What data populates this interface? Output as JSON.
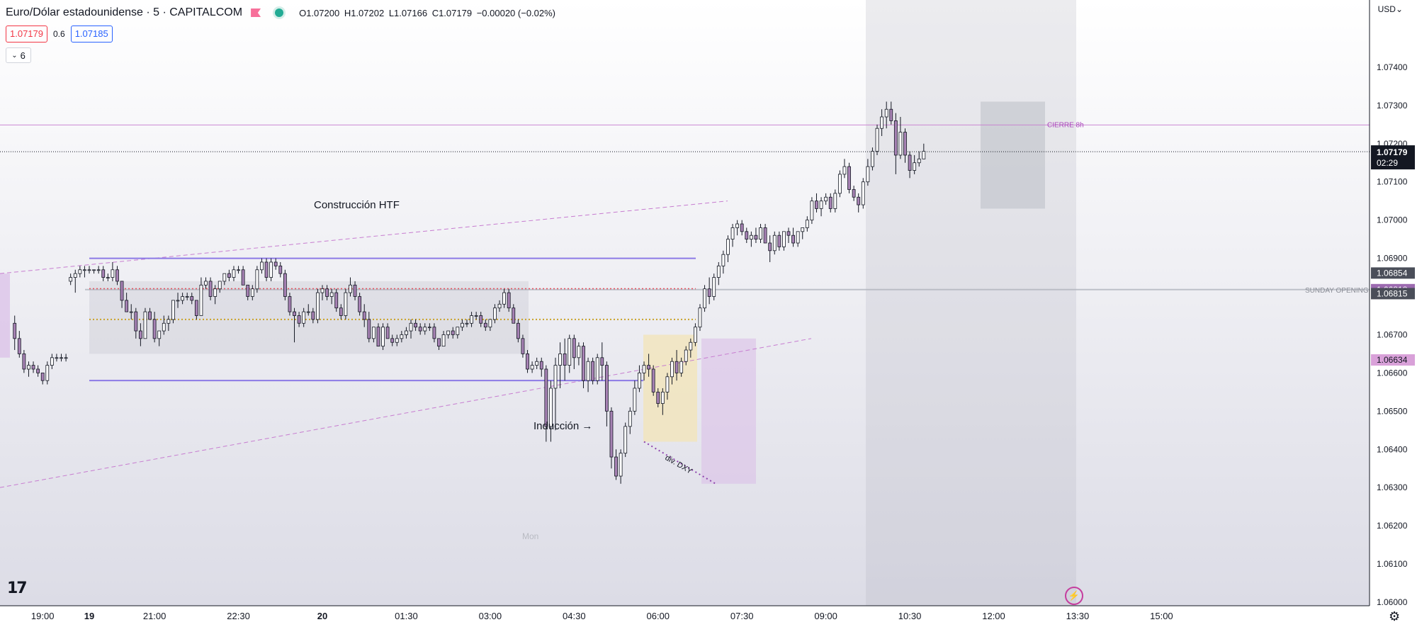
{
  "header": {
    "title": "Euro/Dólar estadounidense · 5 · CAPITALCOM",
    "open": "O1.07200",
    "high": "H1.07202",
    "low": "L1.07166",
    "close": "C1.07179",
    "change": "−0.00020 (−0.02%)"
  },
  "quotes": {
    "sell": "1.07179",
    "spread": "0.6",
    "buy": "1.07185"
  },
  "indicators_toggle": "6",
  "currency": "USD",
  "colors": {
    "candle_up": "#ffffff",
    "candle_down": "#a782b4",
    "wick": "#131722",
    "level_line": "#b39ddb",
    "zone_grey": "#b2b5be",
    "zone_yellow": "#f3e4b7",
    "zone_purple": "#dcc3e8",
    "price_marker": "#131722"
  },
  "chart_data": {
    "type": "candlestick",
    "symbol": "EURUSD",
    "timeframe": "5",
    "ylim": [
      1.06,
      1.0755
    ],
    "y_ticks": [
      "1.07400",
      "1.07300",
      "1.07200",
      "1.07100",
      "1.07000",
      "1.06900",
      "1.06700",
      "1.06600",
      "1.06500",
      "1.06400",
      "1.06300",
      "1.06200",
      "1.06100",
      "1.06000"
    ],
    "x_ticks": [
      {
        "label": "19",
        "t": -14
      },
      {
        "label": "19:00",
        "t": -10
      },
      {
        "label": "21:00",
        "t": 14
      },
      {
        "label": "22:30",
        "t": 32
      },
      {
        "label": "20",
        "t": 50
      },
      {
        "label": "01:30",
        "t": 68
      },
      {
        "label": "03:00",
        "t": 86
      },
      {
        "label": "04:30",
        "t": 104
      },
      {
        "label": "06:00",
        "t": 122
      },
      {
        "label": "07:30",
        "t": 140
      },
      {
        "label": "09:00",
        "t": 158
      },
      {
        "label": "10:30",
        "t": 176
      },
      {
        "label": "12:00",
        "t": 194
      },
      {
        "label": "13:30",
        "t": 212
      },
      {
        "label": "15:00",
        "t": 230
      }
    ],
    "x_bold_ticks": [
      "19",
      "20"
    ],
    "price_labels": [
      {
        "value": 1.06854,
        "text": "1.06854",
        "style": "grey"
      },
      {
        "value": 1.06818,
        "text": "1.06818",
        "style": "purple"
      },
      {
        "value": 1.06815,
        "text": "1.06815",
        "style": "grey"
      },
      {
        "value": 1.06634,
        "text": "1.06634",
        "style": "pink"
      }
    ],
    "last_price": {
      "value": 1.07179,
      "text": "1.07179",
      "countdown": "02:29"
    },
    "horizontal_levels": [
      {
        "value": 1.07249,
        "label": "CIERRE 8h",
        "color": "#c77dd0"
      },
      {
        "value": 1.06818,
        "label": "SUNDAY OPENING",
        "color": "#b2b5be"
      }
    ],
    "annotations": [
      {
        "text": "Construcción HTF",
        "t": 31,
        "y": 1.0698
      },
      {
        "text": "Inducción →",
        "t": 67,
        "y": 1.0646
      },
      {
        "text": "div. DXY",
        "t": 91,
        "y": 1.06385
      },
      {
        "text": "Mon",
        "t": 62,
        "y": 1.0622
      }
    ],
    "candles": [
      [
        1.0673,
        1.0675,
        1.0666,
        1.0669
      ],
      [
        1.0669,
        1.0671,
        1.0664,
        1.0665
      ],
      [
        1.0665,
        1.0666,
        1.066,
        1.0661
      ],
      [
        1.0661,
        1.0663,
        1.0659,
        1.0662
      ],
      [
        1.0662,
        1.0663,
        1.066,
        1.0661
      ],
      [
        1.0661,
        1.0662,
        1.0659,
        1.066
      ],
      [
        1.066,
        1.066,
        1.0657,
        1.0658
      ],
      [
        1.0658,
        1.0663,
        1.0657,
        1.0662
      ],
      [
        1.0662,
        1.0665,
        1.0661,
        1.0664
      ],
      [
        1.0664,
        1.0665,
        1.0663,
        1.0664
      ],
      [
        1.0664,
        1.0665,
        1.0663,
        1.0664
      ],
      [
        1.0664,
        1.0665,
        1.0663,
        1.0664
      ],
      [
        1.0684,
        1.0686,
        1.0683,
        1.0685
      ],
      [
        1.0685,
        1.0687,
        1.0681,
        1.0686
      ],
      [
        1.0686,
        1.0688,
        1.0685,
        1.0687
      ],
      [
        1.0687,
        1.0688,
        1.0685,
        1.0687
      ],
      [
        1.0687,
        1.0688,
        1.0686,
        1.0687
      ],
      [
        1.0687,
        1.0687,
        1.0686,
        1.0687
      ],
      [
        1.0687,
        1.0688,
        1.0686,
        1.0687
      ],
      [
        1.0687,
        1.0688,
        1.0684,
        1.0685
      ],
      [
        1.0685,
        1.0686,
        1.0684,
        1.0685
      ],
      [
        1.0685,
        1.0689,
        1.0684,
        1.0687
      ],
      [
        1.0687,
        1.0688,
        1.0683,
        1.0684
      ],
      [
        1.0684,
        1.0684,
        1.0677,
        1.0679
      ],
      [
        1.0679,
        1.0681,
        1.0676,
        1.0676
      ],
      [
        1.0676,
        1.0678,
        1.0674,
        1.0676
      ],
      [
        1.0676,
        1.0677,
        1.0669,
        1.0671
      ],
      [
        1.0671,
        1.0673,
        1.0667,
        1.0669
      ],
      [
        1.0669,
        1.0677,
        1.0669,
        1.0676
      ],
      [
        1.0676,
        1.0677,
        1.0674,
        1.0674
      ],
      [
        1.0674,
        1.0676,
        1.0668,
        1.0669
      ],
      [
        1.0669,
        1.0671,
        1.0667,
        1.0671
      ],
      [
        1.0671,
        1.0675,
        1.067,
        1.0673
      ],
      [
        1.0673,
        1.0675,
        1.0671,
        1.0674
      ],
      [
        1.0674,
        1.0679,
        1.0673,
        1.0679
      ],
      [
        1.0679,
        1.0681,
        1.0677,
        1.0679
      ],
      [
        1.0679,
        1.0681,
        1.0678,
        1.068
      ],
      [
        1.068,
        1.0681,
        1.0679,
        1.068
      ],
      [
        1.068,
        1.0681,
        1.0678,
        1.0679
      ],
      [
        1.0679,
        1.0679,
        1.0674,
        1.0675
      ],
      [
        1.0675,
        1.0685,
        1.0675,
        1.0683
      ],
      [
        1.0683,
        1.0685,
        1.0682,
        1.0684
      ],
      [
        1.0684,
        1.0685,
        1.0679,
        1.068
      ],
      [
        1.068,
        1.0683,
        1.0678,
        1.0682
      ],
      [
        1.0682,
        1.0684,
        1.0681,
        1.0684
      ],
      [
        1.0684,
        1.0686,
        1.0683,
        1.0686
      ],
      [
        1.0686,
        1.0687,
        1.0684,
        1.0685
      ],
      [
        1.0685,
        1.0688,
        1.0684,
        1.0687
      ],
      [
        1.0687,
        1.0688,
        1.0686,
        1.0687
      ],
      [
        1.0687,
        1.0688,
        1.0683,
        1.0683
      ],
      [
        1.0683,
        1.0683,
        1.0679,
        1.068
      ],
      [
        1.068,
        1.0683,
        1.0679,
        1.0682
      ],
      [
        1.0682,
        1.0688,
        1.0681,
        1.0687
      ],
      [
        1.0687,
        1.069,
        1.0686,
        1.0689
      ],
      [
        1.0689,
        1.069,
        1.0684,
        1.0685
      ],
      [
        1.0685,
        1.069,
        1.0684,
        1.0689
      ],
      [
        1.0689,
        1.069,
        1.0687,
        1.0688
      ],
      [
        1.0688,
        1.0689,
        1.0685,
        1.0686
      ],
      [
        1.0686,
        1.0687,
        1.0679,
        1.068
      ],
      [
        1.068,
        1.0681,
        1.0675,
        1.0676
      ],
      [
        1.0676,
        1.0677,
        1.0668,
        1.0675
      ],
      [
        1.0675,
        1.0676,
        1.0672,
        1.0673
      ],
      [
        1.0673,
        1.0677,
        1.0672,
        1.0676
      ],
      [
        1.0676,
        1.0678,
        1.0675,
        1.0676
      ],
      [
        1.0676,
        1.0677,
        1.0673,
        1.0674
      ],
      [
        1.0674,
        1.0682,
        1.0673,
        1.0681
      ],
      [
        1.0681,
        1.0683,
        1.0679,
        1.0682
      ],
      [
        1.0682,
        1.0683,
        1.0679,
        1.068
      ],
      [
        1.068,
        1.0682,
        1.0678,
        1.0681
      ],
      [
        1.0681,
        1.0682,
        1.0676,
        1.0677
      ],
      [
        1.0677,
        1.0678,
        1.0674,
        1.0675
      ],
      [
        1.0675,
        1.0682,
        1.0674,
        1.0681
      ],
      [
        1.0681,
        1.0685,
        1.068,
        1.0683
      ],
      [
        1.0683,
        1.0684,
        1.0679,
        1.068
      ],
      [
        1.068,
        1.0681,
        1.0675,
        1.0676
      ],
      [
        1.0676,
        1.0678,
        1.0672,
        1.0674
      ],
      [
        1.0674,
        1.0676,
        1.0668,
        1.0669
      ],
      [
        1.0669,
        1.0672,
        1.0668,
        1.0672
      ],
      [
        1.0672,
        1.0673,
        1.0667,
        1.0667
      ],
      [
        1.0667,
        1.0673,
        1.0666,
        1.0672
      ],
      [
        1.0672,
        1.0673,
        1.0669,
        1.0669
      ],
      [
        1.0669,
        1.067,
        1.0667,
        1.0668
      ],
      [
        1.0668,
        1.067,
        1.0667,
        1.0669
      ],
      [
        1.0669,
        1.0671,
        1.0668,
        1.067
      ],
      [
        1.067,
        1.0672,
        1.0669,
        1.0671
      ],
      [
        1.0671,
        1.0674,
        1.0669,
        1.0673
      ],
      [
        1.0673,
        1.0674,
        1.0671,
        1.0672
      ],
      [
        1.0672,
        1.0673,
        1.067,
        1.0671
      ],
      [
        1.0671,
        1.0673,
        1.067,
        1.0672
      ],
      [
        1.0672,
        1.0673,
        1.0671,
        1.0672
      ],
      [
        1.0672,
        1.0673,
        1.0668,
        1.0669
      ],
      [
        1.0669,
        1.0669,
        1.0666,
        1.0667
      ],
      [
        1.0667,
        1.0671,
        1.0667,
        1.067
      ],
      [
        1.067,
        1.0671,
        1.0669,
        1.0671
      ],
      [
        1.0671,
        1.0672,
        1.0669,
        1.067
      ],
      [
        1.067,
        1.0672,
        1.0669,
        1.0672
      ],
      [
        1.0672,
        1.0674,
        1.0671,
        1.0673
      ],
      [
        1.0673,
        1.0674,
        1.0672,
        1.0673
      ],
      [
        1.0673,
        1.0676,
        1.0672,
        1.0675
      ],
      [
        1.0675,
        1.0676,
        1.0674,
        1.0675
      ],
      [
        1.0675,
        1.0676,
        1.0672,
        1.0673
      ],
      [
        1.0673,
        1.0674,
        1.0671,
        1.0672
      ],
      [
        1.0672,
        1.0674,
        1.0671,
        1.0674
      ],
      [
        1.0674,
        1.0678,
        1.0673,
        1.0677
      ],
      [
        1.0677,
        1.0679,
        1.0676,
        1.0678
      ],
      [
        1.0678,
        1.0682,
        1.0677,
        1.0681
      ],
      [
        1.0681,
        1.0682,
        1.0676,
        1.0677
      ],
      [
        1.0677,
        1.0678,
        1.0673,
        1.0673
      ],
      [
        1.0673,
        1.0674,
        1.0668,
        1.0669
      ],
      [
        1.0669,
        1.067,
        1.0664,
        1.0665
      ],
      [
        1.0665,
        1.0666,
        1.066,
        1.0661
      ],
      [
        1.0661,
        1.0663,
        1.066,
        1.0662
      ],
      [
        1.0662,
        1.0664,
        1.0661,
        1.0663
      ],
      [
        1.0663,
        1.0664,
        1.0659,
        1.0661
      ],
      [
        1.0661,
        1.0662,
        1.0642,
        1.0646
      ],
      [
        1.0646,
        1.0658,
        1.0642,
        1.0656
      ],
      [
        1.0656,
        1.0664,
        1.0645,
        1.0662
      ],
      [
        1.0662,
        1.0668,
        1.0656,
        1.0665
      ],
      [
        1.0665,
        1.0669,
        1.0658,
        1.0662
      ],
      [
        1.0662,
        1.067,
        1.066,
        1.0669
      ],
      [
        1.0669,
        1.067,
        1.0661,
        1.0664
      ],
      [
        1.0664,
        1.0668,
        1.0662,
        1.0667
      ],
      [
        1.0667,
        1.0668,
        1.0656,
        1.0658
      ],
      [
        1.0658,
        1.0664,
        1.0655,
        1.0663
      ],
      [
        1.0663,
        1.0664,
        1.0657,
        1.0658
      ],
      [
        1.0658,
        1.0665,
        1.0657,
        1.0664
      ],
      [
        1.0664,
        1.0668,
        1.0658,
        1.0662
      ],
      [
        1.0662,
        1.0663,
        1.0646,
        1.065
      ],
      [
        1.065,
        1.0651,
        1.0635,
        1.0638
      ],
      [
        1.0638,
        1.064,
        1.0632,
        1.0633
      ],
      [
        1.0633,
        1.064,
        1.0631,
        1.0639
      ],
      [
        1.0639,
        1.0647,
        1.0638,
        1.0646
      ],
      [
        1.0646,
        1.0651,
        1.0644,
        1.065
      ],
      [
        1.065,
        1.0658,
        1.0649,
        1.0656
      ],
      [
        1.0656,
        1.0662,
        1.0655,
        1.066
      ],
      [
        1.066,
        1.0663,
        1.0658,
        1.0662
      ],
      [
        1.0662,
        1.0665,
        1.0659,
        1.0661
      ],
      [
        1.0661,
        1.0662,
        1.0654,
        1.0655
      ],
      [
        1.0655,
        1.0656,
        1.0651,
        1.0652
      ],
      [
        1.0652,
        1.0656,
        1.0649,
        1.0655
      ],
      [
        1.0655,
        1.066,
        1.0653,
        1.0659
      ],
      [
        1.0659,
        1.0664,
        1.0657,
        1.0663
      ],
      [
        1.0663,
        1.0666,
        1.0658,
        1.066
      ],
      [
        1.066,
        1.0664,
        1.0659,
        1.0663
      ],
      [
        1.0663,
        1.0667,
        1.0662,
        1.0666
      ],
      [
        1.0666,
        1.0669,
        1.0664,
        1.0668
      ],
      [
        1.0668,
        1.0673,
        1.0667,
        1.0672
      ],
      [
        1.0672,
        1.0678,
        1.0671,
        1.0677
      ],
      [
        1.0677,
        1.0683,
        1.0676,
        1.0682
      ],
      [
        1.0682,
        1.0685,
        1.0678,
        1.068
      ],
      [
        1.068,
        1.0686,
        1.0679,
        1.0685
      ],
      [
        1.0685,
        1.0689,
        1.0683,
        1.0688
      ],
      [
        1.0688,
        1.0692,
        1.0686,
        1.0691
      ],
      [
        1.0691,
        1.0696,
        1.0689,
        1.0695
      ],
      [
        1.0695,
        1.0699,
        1.0693,
        1.0698
      ],
      [
        1.0698,
        1.07,
        1.0696,
        1.0699
      ],
      [
        1.0699,
        1.07,
        1.0696,
        1.0697
      ],
      [
        1.0697,
        1.0698,
        1.0694,
        1.0695
      ],
      [
        1.0695,
        1.0697,
        1.0693,
        1.0696
      ],
      [
        1.0696,
        1.0698,
        1.0694,
        1.0695
      ],
      [
        1.0695,
        1.0699,
        1.0694,
        1.0698
      ],
      [
        1.0698,
        1.0699,
        1.0694,
        1.0694
      ],
      [
        1.0694,
        1.0696,
        1.0689,
        1.0692
      ],
      [
        1.0692,
        1.0697,
        1.0691,
        1.0696
      ],
      [
        1.0696,
        1.0697,
        1.0692,
        1.0693
      ],
      [
        1.0693,
        1.0697,
        1.0692,
        1.0697
      ],
      [
        1.0697,
        1.0698,
        1.0694,
        1.0696
      ],
      [
        1.0696,
        1.0698,
        1.0693,
        1.0694
      ],
      [
        1.0694,
        1.0697,
        1.0693,
        1.0697
      ],
      [
        1.0697,
        1.0698,
        1.0695,
        1.0698
      ],
      [
        1.0698,
        1.0701,
        1.0697,
        1.07
      ],
      [
        1.07,
        1.0706,
        1.0699,
        1.0705
      ],
      [
        1.0705,
        1.0707,
        1.0702,
        1.0703
      ],
      [
        1.0703,
        1.0706,
        1.0701,
        1.0705
      ],
      [
        1.0705,
        1.0707,
        1.0704,
        1.0706
      ],
      [
        1.0706,
        1.0707,
        1.0702,
        1.0703
      ],
      [
        1.0703,
        1.0708,
        1.0702,
        1.0707
      ],
      [
        1.0707,
        1.0713,
        1.0706,
        1.0712
      ],
      [
        1.0712,
        1.0716,
        1.0711,
        1.0714
      ],
      [
        1.0714,
        1.0715,
        1.0707,
        1.0708
      ],
      [
        1.0708,
        1.0709,
        1.0705,
        1.0706
      ],
      [
        1.0706,
        1.0707,
        1.0702,
        1.0704
      ],
      [
        1.0704,
        1.0711,
        1.0703,
        1.071
      ],
      [
        1.071,
        1.0716,
        1.0709,
        1.0714
      ],
      [
        1.0714,
        1.0719,
        1.0713,
        1.0718
      ],
      [
        1.0718,
        1.0725,
        1.0717,
        1.0724
      ],
      [
        1.0724,
        1.0729,
        1.0722,
        1.0727
      ],
      [
        1.0727,
        1.0731,
        1.0724,
        1.0729
      ],
      [
        1.0729,
        1.0731,
        1.0725,
        1.0726
      ],
      [
        1.0726,
        1.0728,
        1.0712,
        1.0717
      ],
      [
        1.0717,
        1.0727,
        1.0716,
        1.0723
      ],
      [
        1.0723,
        1.0724,
        1.0715,
        1.0717
      ],
      [
        1.0717,
        1.0718,
        1.0711,
        1.0713
      ],
      [
        1.0713,
        1.0717,
        1.0712,
        1.0715
      ],
      [
        1.0715,
        1.0718,
        1.0714,
        1.0716
      ],
      [
        1.0716,
        1.072,
        1.0716,
        1.0718
      ]
    ]
  }
}
